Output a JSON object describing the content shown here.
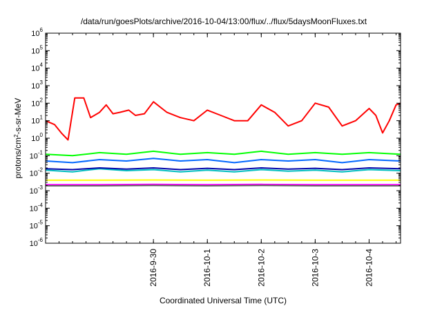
{
  "chart_data": {
    "type": "line",
    "title": "/data/run/goesPlots/archive/2016-10-04/13:00/flux/../flux/5daysMoonFluxes.txt",
    "xlabel": "Coordinated Universal Time (UTC)",
    "ylabel": {
      "base": "protons/cm",
      "sup": "2",
      "rest": "-s-sr-MeV"
    },
    "yscale": "log",
    "ylim": [
      1e-06,
      1000000.0
    ],
    "xlim": [
      "2016-09-28T00:00",
      "2016-10-04T14:00"
    ],
    "grid": false,
    "legend": "none",
    "y_ticks": [
      {
        "value": 1e-06,
        "base": "10",
        "exp": "-6"
      },
      {
        "value": 1e-05,
        "base": "10",
        "exp": "-5"
      },
      {
        "value": 0.0001,
        "base": "10",
        "exp": "-4"
      },
      {
        "value": 0.001,
        "base": "10",
        "exp": "-3"
      },
      {
        "value": 0.01,
        "base": "10",
        "exp": "-2"
      },
      {
        "value": 0.1,
        "base": "10",
        "exp": "-1"
      },
      {
        "value": 1,
        "base": "10",
        "exp": "0"
      },
      {
        "value": 10,
        "base": "10",
        "exp": "1"
      },
      {
        "value": 100,
        "base": "10",
        "exp": "2"
      },
      {
        "value": 1000,
        "base": "10",
        "exp": "3"
      },
      {
        "value": 10000,
        "base": "10",
        "exp": "4"
      },
      {
        "value": 100000,
        "base": "10",
        "exp": "5"
      },
      {
        "value": 1000000,
        "base": "10",
        "exp": "6"
      }
    ],
    "x_ticks": [
      {
        "value": "2016-09-30T00:00",
        "label": "2016-9-30"
      },
      {
        "value": "2016-10-01T00:00",
        "label": "2016-10-1"
      },
      {
        "value": "2016-10-02T00:00",
        "label": "2016-10-2"
      },
      {
        "value": "2016-10-03T00:00",
        "label": "2016-10-3"
      },
      {
        "value": "2016-10-04T00:00",
        "label": "2016-10-4"
      }
    ],
    "series": [
      {
        "color": "#ff0000",
        "x": [
          "2016-09-28T00:00",
          "2016-09-28T04:00",
          "2016-09-28T07:00",
          "2016-09-28T10:00",
          "2016-09-28T13:00",
          "2016-09-28T17:00",
          "2016-09-28T20:00",
          "2016-09-29T00:00",
          "2016-09-29T03:00",
          "2016-09-29T06:00",
          "2016-09-29T09:00",
          "2016-09-29T13:00",
          "2016-09-29T16:00",
          "2016-09-29T20:00",
          "2016-09-30T00:00",
          "2016-09-30T06:00",
          "2016-09-30T12:00",
          "2016-09-30T18:00",
          "2016-10-01T00:00",
          "2016-10-01T06:00",
          "2016-10-01T12:00",
          "2016-10-01T18:00",
          "2016-10-02T00:00",
          "2016-10-02T06:00",
          "2016-10-02T12:00",
          "2016-10-02T18:00",
          "2016-10-03T00:00",
          "2016-10-03T06:00",
          "2016-10-03T12:00",
          "2016-10-03T18:00",
          "2016-10-04T00:00",
          "2016-10-04T03:00",
          "2016-10-04T06:00",
          "2016-10-04T09:00",
          "2016-10-04T12:00",
          "2016-10-04T14:00"
        ],
        "y": [
          10,
          6,
          2,
          0.8,
          200,
          200,
          15,
          30,
          80,
          25,
          30,
          40,
          20,
          25,
          120,
          30,
          15,
          10,
          40,
          20,
          10,
          10,
          80,
          30,
          5,
          10,
          100,
          60,
          5,
          10,
          50,
          20,
          2,
          10,
          80,
          100
        ]
      },
      {
        "color": "#00ff00",
        "x": [
          "2016-09-28T00:00",
          "2016-09-28T12:00",
          "2016-09-29T00:00",
          "2016-09-29T12:00",
          "2016-09-30T00:00",
          "2016-09-30T12:00",
          "2016-10-01T00:00",
          "2016-10-01T12:00",
          "2016-10-02T00:00",
          "2016-10-02T12:00",
          "2016-10-03T00:00",
          "2016-10-03T12:00",
          "2016-10-04T00:00",
          "2016-10-04T14:00"
        ],
        "y": [
          0.12,
          0.1,
          0.15,
          0.12,
          0.18,
          0.12,
          0.15,
          0.12,
          0.18,
          0.12,
          0.15,
          0.12,
          0.15,
          0.12
        ]
      },
      {
        "color": "#0066ff",
        "x": [
          "2016-09-28T00:00",
          "2016-09-28T12:00",
          "2016-09-29T00:00",
          "2016-09-29T12:00",
          "2016-09-30T00:00",
          "2016-09-30T12:00",
          "2016-10-01T00:00",
          "2016-10-01T12:00",
          "2016-10-02T00:00",
          "2016-10-02T12:00",
          "2016-10-03T00:00",
          "2016-10-03T12:00",
          "2016-10-04T00:00",
          "2016-10-04T14:00"
        ],
        "y": [
          0.05,
          0.04,
          0.06,
          0.05,
          0.07,
          0.05,
          0.06,
          0.04,
          0.06,
          0.05,
          0.06,
          0.04,
          0.06,
          0.05
        ]
      },
      {
        "color": "#00bfbf",
        "x": [
          "2016-09-28T00:00",
          "2016-09-28T12:00",
          "2016-09-29T00:00",
          "2016-09-29T12:00",
          "2016-09-30T00:00",
          "2016-09-30T12:00",
          "2016-10-01T00:00",
          "2016-10-01T12:00",
          "2016-10-02T00:00",
          "2016-10-02T12:00",
          "2016-10-03T00:00",
          "2016-10-03T12:00",
          "2016-10-04T00:00",
          "2016-10-04T14:00"
        ],
        "y": [
          0.015,
          0.012,
          0.018,
          0.014,
          0.016,
          0.012,
          0.015,
          0.012,
          0.016,
          0.013,
          0.015,
          0.012,
          0.016,
          0.014
        ]
      },
      {
        "color": "#0000aa",
        "x": [
          "2016-09-28T00:00",
          "2016-09-28T12:00",
          "2016-09-29T00:00",
          "2016-09-29T12:00",
          "2016-09-30T00:00",
          "2016-09-30T12:00",
          "2016-10-01T00:00",
          "2016-10-01T12:00",
          "2016-10-02T00:00",
          "2016-10-02T12:00",
          "2016-10-03T00:00",
          "2016-10-03T12:00",
          "2016-10-04T00:00",
          "2016-10-04T14:00"
        ],
        "y": [
          0.018,
          0.016,
          0.02,
          0.017,
          0.02,
          0.016,
          0.019,
          0.016,
          0.02,
          0.017,
          0.019,
          0.016,
          0.02,
          0.018
        ]
      },
      {
        "color": "#ffff00",
        "x": [
          "2016-09-28T00:00",
          "2016-09-29T00:00",
          "2016-09-30T00:00",
          "2016-10-01T00:00",
          "2016-10-02T00:00",
          "2016-10-03T00:00",
          "2016-10-04T00:00",
          "2016-10-04T14:00"
        ],
        "y": [
          0.004,
          0.004,
          0.0041,
          0.004,
          0.0041,
          0.004,
          0.004,
          0.004
        ]
      },
      {
        "color": "#ff00ff",
        "x": [
          "2016-09-28T00:00",
          "2016-09-29T00:00",
          "2016-09-30T00:00",
          "2016-10-01T00:00",
          "2016-10-02T00:00",
          "2016-10-03T00:00",
          "2016-10-04T00:00",
          "2016-10-04T14:00"
        ],
        "y": [
          0.0022,
          0.0022,
          0.0023,
          0.0022,
          0.0023,
          0.0022,
          0.0022,
          0.0022
        ]
      },
      {
        "color": "#606060",
        "x": [
          "2016-09-28T00:00",
          "2016-09-29T00:00",
          "2016-09-30T00:00",
          "2016-10-01T00:00",
          "2016-10-02T00:00",
          "2016-10-03T00:00",
          "2016-10-04T00:00",
          "2016-10-04T14:00"
        ],
        "y": [
          0.0019,
          0.0019,
          0.002,
          0.0019,
          0.002,
          0.0019,
          0.0019,
          0.0019
        ]
      }
    ]
  }
}
